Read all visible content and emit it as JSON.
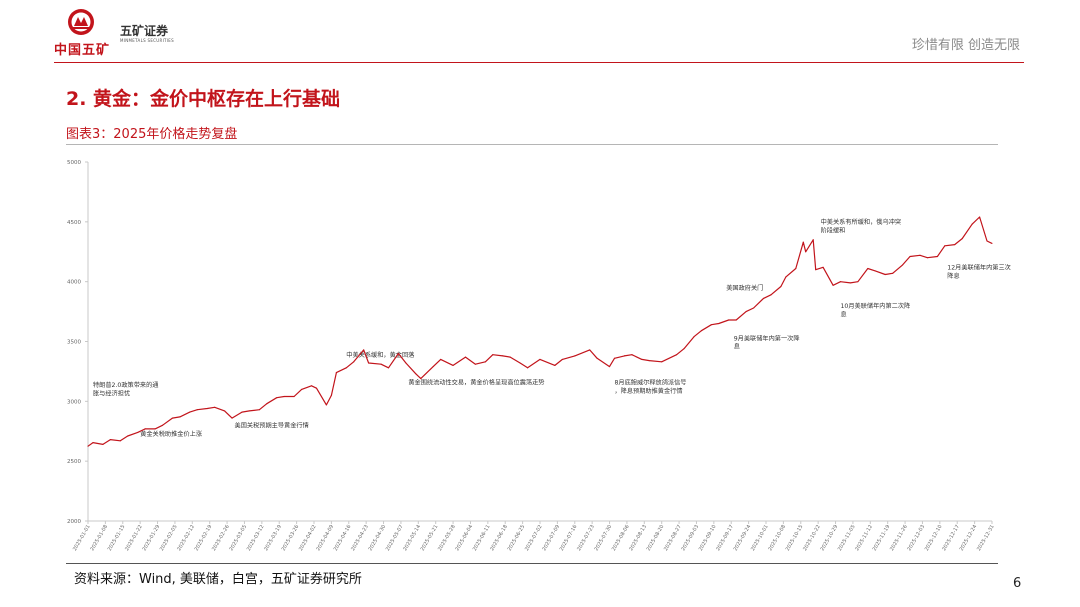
{
  "header": {
    "logo_name": "中国五矿",
    "logo_emblem": "china-minmetals-emblem",
    "securities_name": "五矿证券",
    "securities_en": "MINMETALS SECURITIES",
    "slogan": "珍惜有限  创造无限",
    "accent_color": "#c2141b"
  },
  "page_title": "2. 黄金：金价中枢存在上行基础",
  "figure_title": "图表3：2025年价格走势复盘",
  "source_text": "资料来源：Wind, 美联储，白宫，五矿证券研究所",
  "page_number": "6",
  "chart_data": {
    "type": "line",
    "title": "",
    "xlabel": "",
    "ylabel": "",
    "ylim": [
      2000,
      5000
    ],
    "yticks": [
      2000,
      2500,
      3000,
      3500,
      4000,
      4500,
      5000
    ],
    "xlim": [
      "2025-01-01",
      "2025-12-31"
    ],
    "xticks": [
      "2025-01-01",
      "2025-01-08",
      "2025-01-15",
      "2025-01-22",
      "2025-01-29",
      "2025-02-05",
      "2025-02-12",
      "2025-02-19",
      "2025-02-26",
      "2025-03-05",
      "2025-03-12",
      "2025-03-19",
      "2025-03-26",
      "2025-04-02",
      "2025-04-09",
      "2025-04-16",
      "2025-04-23",
      "2025-04-30",
      "2025-05-07",
      "2025-05-14",
      "2025-05-21",
      "2025-05-28",
      "2025-06-04",
      "2025-06-11",
      "2025-06-18",
      "2025-06-25",
      "2025-07-02",
      "2025-07-09",
      "2025-07-16",
      "2025-07-23",
      "2025-07-30",
      "2025-08-06",
      "2025-08-13",
      "2025-08-20",
      "2025-08-27",
      "2025-09-03",
      "2025-09-10",
      "2025-09-17",
      "2025-09-24",
      "2025-10-01",
      "2025-10-08",
      "2025-10-15",
      "2025-10-22",
      "2025-10-29",
      "2025-11-05",
      "2025-11-12",
      "2025-11-19",
      "2025-11-26",
      "2025-12-03",
      "2025-12-10",
      "2025-12-17",
      "2025-12-24",
      "2025-12-31"
    ],
    "grid": false,
    "line_color": "#c2141b",
    "series": [
      {
        "x": [
          "2025-01-01",
          "2025-01-03",
          "2025-01-07",
          "2025-01-10",
          "2025-01-14",
          "2025-01-17",
          "2025-01-21",
          "2025-01-24",
          "2025-01-28",
          "2025-01-31",
          "2025-02-04",
          "2025-02-07",
          "2025-02-11",
          "2025-02-14",
          "2025-02-18",
          "2025-02-21",
          "2025-02-25",
          "2025-02-28",
          "2025-03-04",
          "2025-03-07",
          "2025-03-11",
          "2025-03-14",
          "2025-03-18",
          "2025-03-21",
          "2025-03-25",
          "2025-03-28",
          "2025-04-01",
          "2025-04-03",
          "2025-04-07",
          "2025-04-09",
          "2025-04-11",
          "2025-04-15",
          "2025-04-18",
          "2025-04-22",
          "2025-04-24",
          "2025-04-29",
          "2025-05-02",
          "2025-05-06",
          "2025-05-09",
          "2025-05-13",
          "2025-05-15",
          "2025-05-20",
          "2025-05-23",
          "2025-05-28",
          "2025-06-02",
          "2025-06-06",
          "2025-06-10",
          "2025-06-13",
          "2025-06-17",
          "2025-06-20",
          "2025-06-24",
          "2025-06-27",
          "2025-07-02",
          "2025-07-08",
          "2025-07-11",
          "2025-07-16",
          "2025-07-22",
          "2025-07-25",
          "2025-07-30",
          "2025-08-01",
          "2025-08-05",
          "2025-08-08",
          "2025-08-12",
          "2025-08-15",
          "2025-08-20",
          "2025-08-26",
          "2025-08-29",
          "2025-09-02",
          "2025-09-05",
          "2025-09-09",
          "2025-09-12",
          "2025-09-16",
          "2025-09-19",
          "2025-09-23",
          "2025-09-26",
          "2025-09-30",
          "2025-10-03",
          "2025-10-07",
          "2025-10-09",
          "2025-10-13",
          "2025-10-16",
          "2025-10-17",
          "2025-10-20",
          "2025-10-21",
          "2025-10-24",
          "2025-10-28",
          "2025-10-31",
          "2025-11-04",
          "2025-11-07",
          "2025-11-11",
          "2025-11-14",
          "2025-11-18",
          "2025-11-21",
          "2025-11-25",
          "2025-11-28",
          "2025-12-02",
          "2025-12-05",
          "2025-12-09",
          "2025-12-12",
          "2025-12-16",
          "2025-12-19",
          "2025-12-23",
          "2025-12-26",
          "2025-12-29",
          "2025-12-31"
        ],
        "y": [
          2625,
          2655,
          2640,
          2680,
          2670,
          2710,
          2740,
          2770,
          2770,
          2800,
          2860,
          2870,
          2910,
          2930,
          2940,
          2950,
          2920,
          2860,
          2910,
          2920,
          2930,
          2980,
          3030,
          3040,
          3040,
          3100,
          3130,
          3110,
          2970,
          3050,
          3240,
          3280,
          3330,
          3430,
          3320,
          3310,
          3280,
          3400,
          3320,
          3230,
          3190,
          3290,
          3350,
          3300,
          3370,
          3310,
          3330,
          3390,
          3380,
          3370,
          3320,
          3280,
          3350,
          3300,
          3350,
          3380,
          3430,
          3360,
          3290,
          3360,
          3380,
          3390,
          3350,
          3340,
          3330,
          3390,
          3440,
          3540,
          3590,
          3640,
          3650,
          3680,
          3680,
          3750,
          3780,
          3860,
          3890,
          3960,
          4040,
          4110,
          4330,
          4250,
          4350,
          4100,
          4120,
          3970,
          4000,
          3990,
          4000,
          4110,
          4090,
          4060,
          4070,
          4140,
          4210,
          4220,
          4200,
          4210,
          4300,
          4310,
          4360,
          4480,
          4540,
          4340,
          4320
        ]
      }
    ],
    "annotations": [
      {
        "text": "特朗普2.0政策带来的通胀与经济担忧",
        "x": "2025-01-03",
        "y": 3120,
        "anchor": "start",
        "width": 72
      },
      {
        "text": "黄金关税助推金价上涨",
        "x": "2025-01-22",
        "y": 2710,
        "anchor": "start",
        "width": 90
      },
      {
        "text": "美国关税预期主导黄金行情",
        "x": "2025-03-01",
        "y": 2780,
        "anchor": "start",
        "width": 76
      },
      {
        "text": "中美关系缓和，黄金回落",
        "x": "2025-04-15",
        "y": 3370,
        "anchor": "start",
        "width": 68
      },
      {
        "text": "黄金围绕流动性交易，黄金价格呈现高位震荡走势",
        "x": "2025-05-10",
        "y": 3140,
        "anchor": "start",
        "width": 230
      },
      {
        "text": "8月底鲍威尔释放鸽派信号，降息预期助推黄金行情",
        "x": "2025-08-01",
        "y": 3140,
        "anchor": "start",
        "width": 72
      },
      {
        "text": "美国政府关门",
        "x": "2025-09-15",
        "y": 3930,
        "anchor": "start",
        "width": 70
      },
      {
        "text": "9月美联储年内第一次降息",
        "x": "2025-09-18",
        "y": 3510,
        "anchor": "start",
        "width": 66
      },
      {
        "text": "中美关系有所缓和，俄乌冲突阶段缓和",
        "x": "2025-10-23",
        "y": 4480,
        "anchor": "start",
        "width": 78
      },
      {
        "text": "10月美联储年内第二次降息",
        "x": "2025-10-31",
        "y": 3780,
        "anchor": "start",
        "width": 76
      },
      {
        "text": "12月美联储年内第三次降息",
        "x": "2025-12-13",
        "y": 4100,
        "anchor": "start",
        "width": 70
      }
    ]
  }
}
